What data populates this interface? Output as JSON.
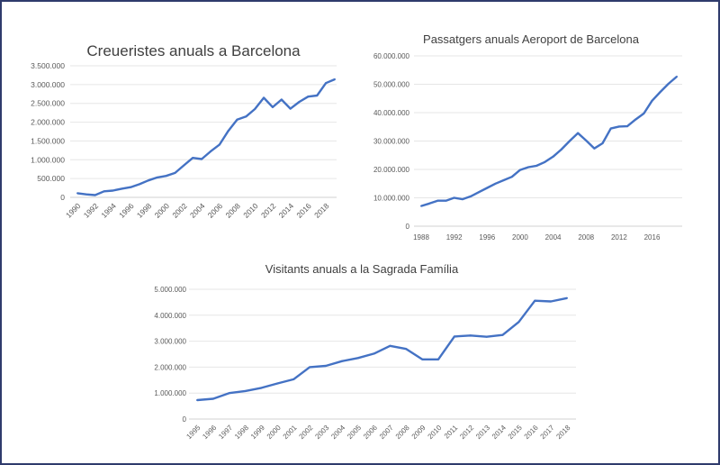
{
  "chart_data": [
    {
      "type": "line",
      "title": "Creueristes anuals a Barcelona",
      "xlabel": "",
      "ylabel": "",
      "x": [
        1990,
        1991,
        1992,
        1993,
        1994,
        1995,
        1996,
        1997,
        1998,
        1999,
        2000,
        2001,
        2002,
        2003,
        2004,
        2005,
        2006,
        2007,
        2008,
        2009,
        2010,
        2011,
        2012,
        2013,
        2014,
        2015,
        2016,
        2017,
        2018,
        2019
      ],
      "values": [
        110000,
        80000,
        60000,
        160000,
        180000,
        230000,
        270000,
        350000,
        450000,
        530000,
        570000,
        650000,
        850000,
        1050000,
        1020000,
        1220000,
        1400000,
        1770000,
        2070000,
        2150000,
        2350000,
        2650000,
        2400000,
        2600000,
        2360000,
        2540000,
        2680000,
        2710000,
        3040000,
        3140000
      ],
      "ylim": [
        0,
        3500000
      ],
      "yticks": [
        "0",
        "500.000",
        "1.000.000",
        "1.500.000",
        "2.000.000",
        "2.500.000",
        "3.000.000",
        "3.500.000"
      ],
      "xticks": [
        "1990",
        "1992",
        "1994",
        "1996",
        "1998",
        "2000",
        "2002",
        "2004",
        "2006",
        "2008",
        "2010",
        "2012",
        "2014",
        "2016",
        "2018"
      ],
      "grid": true,
      "line_color": "#4472c4"
    },
    {
      "type": "line",
      "title": "Passatgers anuals Aeroport de Barcelona",
      "xlabel": "",
      "ylabel": "",
      "x": [
        1988,
        1989,
        1990,
        1991,
        1992,
        1993,
        1994,
        1995,
        1996,
        1997,
        1998,
        1999,
        2000,
        2001,
        2002,
        2003,
        2004,
        2005,
        2006,
        2007,
        2008,
        2009,
        2010,
        2011,
        2012,
        2013,
        2014,
        2015,
        2016,
        2017,
        2018,
        2019
      ],
      "values": [
        7100000,
        8000000,
        9000000,
        9000000,
        10000000,
        9500000,
        10500000,
        12000000,
        13500000,
        15000000,
        16200000,
        17400000,
        19800000,
        20800000,
        21300000,
        22600000,
        24500000,
        27000000,
        30000000,
        32800000,
        30200000,
        27400000,
        29200000,
        34400000,
        35100000,
        35200000,
        37600000,
        39700000,
        44200000,
        47300000,
        50200000,
        52700000
      ],
      "ylim": [
        0,
        60000000
      ],
      "yticks": [
        "0",
        "10.000.000",
        "20.000.000",
        "30.000.000",
        "40.000.000",
        "50.000.000",
        "60.000.000"
      ],
      "xticks": [
        "1988",
        "1992",
        "1996",
        "2000",
        "2004",
        "2008",
        "2012",
        "2016"
      ],
      "grid": true,
      "line_color": "#4472c4"
    },
    {
      "type": "line",
      "title": "Visitants anuals a la Sagrada Família",
      "xlabel": "",
      "ylabel": "",
      "x": [
        1995,
        1996,
        1997,
        1998,
        1999,
        2000,
        2001,
        2002,
        2003,
        2004,
        2005,
        2006,
        2007,
        2008,
        2009,
        2010,
        2011,
        2012,
        2013,
        2014,
        2015,
        2016,
        2017,
        2018
      ],
      "values": [
        730000,
        780000,
        1000000,
        1080000,
        1200000,
        1370000,
        1530000,
        2000000,
        2050000,
        2230000,
        2350000,
        2520000,
        2820000,
        2700000,
        2300000,
        2300000,
        3180000,
        3220000,
        3170000,
        3240000,
        3740000,
        4560000,
        4530000,
        4660000
      ],
      "ylim": [
        0,
        5000000
      ],
      "yticks": [
        "0",
        "1.000.000",
        "2.000.000",
        "3.000.000",
        "4.000.000",
        "5.000.000"
      ],
      "xticks": [
        "1995",
        "1996",
        "1997",
        "1998",
        "1999",
        "2000",
        "2001",
        "2002",
        "2003",
        "2004",
        "2005",
        "2006",
        "2007",
        "2008",
        "2009",
        "2010",
        "2011",
        "2012",
        "2013",
        "2014",
        "2015",
        "2016",
        "2017",
        "2018"
      ],
      "grid": true,
      "line_color": "#4472c4"
    }
  ]
}
